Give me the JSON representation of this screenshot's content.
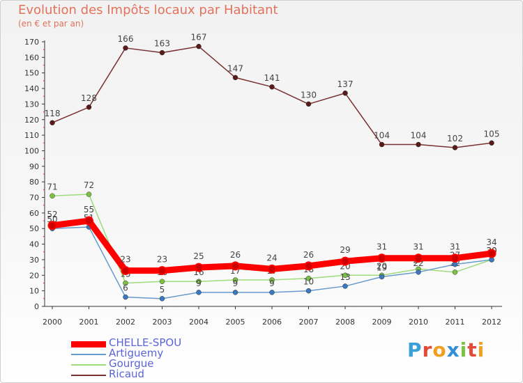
{
  "header": {
    "title": "Evolution des Impôts locaux par Habitant",
    "subtitle": "(en € et par an)"
  },
  "logo": {
    "text": "Proxiti",
    "colors": [
      "#3aa0d8",
      "#e24a3a",
      "#f0a020",
      "#2f8fd8",
      "#7cc242",
      "#e24a3a",
      "#f0a020"
    ]
  },
  "chart_data": {
    "type": "line",
    "title": "Evolution des Impôts locaux par Habitant",
    "subtitle": "(en € et par an)",
    "xlabel": "",
    "ylabel": "",
    "x": [
      "2000",
      "2001",
      "2002",
      "2003",
      "2004",
      "2005",
      "2006",
      "2007",
      "2008",
      "2009",
      "2010",
      "2011",
      "2012"
    ],
    "ylim": [
      0,
      170
    ],
    "yticks": [
      0,
      10,
      20,
      30,
      40,
      50,
      60,
      70,
      80,
      90,
      100,
      110,
      120,
      130,
      140,
      150,
      160,
      170
    ],
    "grid": false,
    "legend_position": "bottom-left",
    "series": [
      {
        "name": "Ricaud",
        "color": "#7a3030",
        "marker": "#5a1a1a",
        "width": "thin",
        "values": [
          118,
          128,
          166,
          163,
          167,
          147,
          141,
          130,
          137,
          104,
          104,
          102,
          105
        ]
      },
      {
        "name": "Gourgue",
        "color": "#9ddc7a",
        "marker": "#7cc242",
        "width": "thin",
        "values": [
          71,
          72,
          15,
          16,
          16,
          17,
          17,
          18,
          20,
          20,
          24,
          22,
          30
        ]
      },
      {
        "name": "Artiguemy",
        "color": "#6699cc",
        "marker": "#3a78c0",
        "width": "thin",
        "values": [
          50,
          51,
          6,
          5,
          9,
          9,
          9,
          10,
          13,
          19,
          22,
          27,
          30
        ]
      },
      {
        "name": "CHELLE-SPOU",
        "color": "#ff0000",
        "marker": "#cc0000",
        "width": "thick",
        "values": [
          52,
          55,
          23,
          23,
          25,
          26,
          24,
          26,
          29,
          31,
          31,
          31,
          34
        ]
      }
    ],
    "legend": [
      "CHELLE-SPOU",
      "Artiguemy",
      "Gourgue",
      "Ricaud"
    ]
  }
}
